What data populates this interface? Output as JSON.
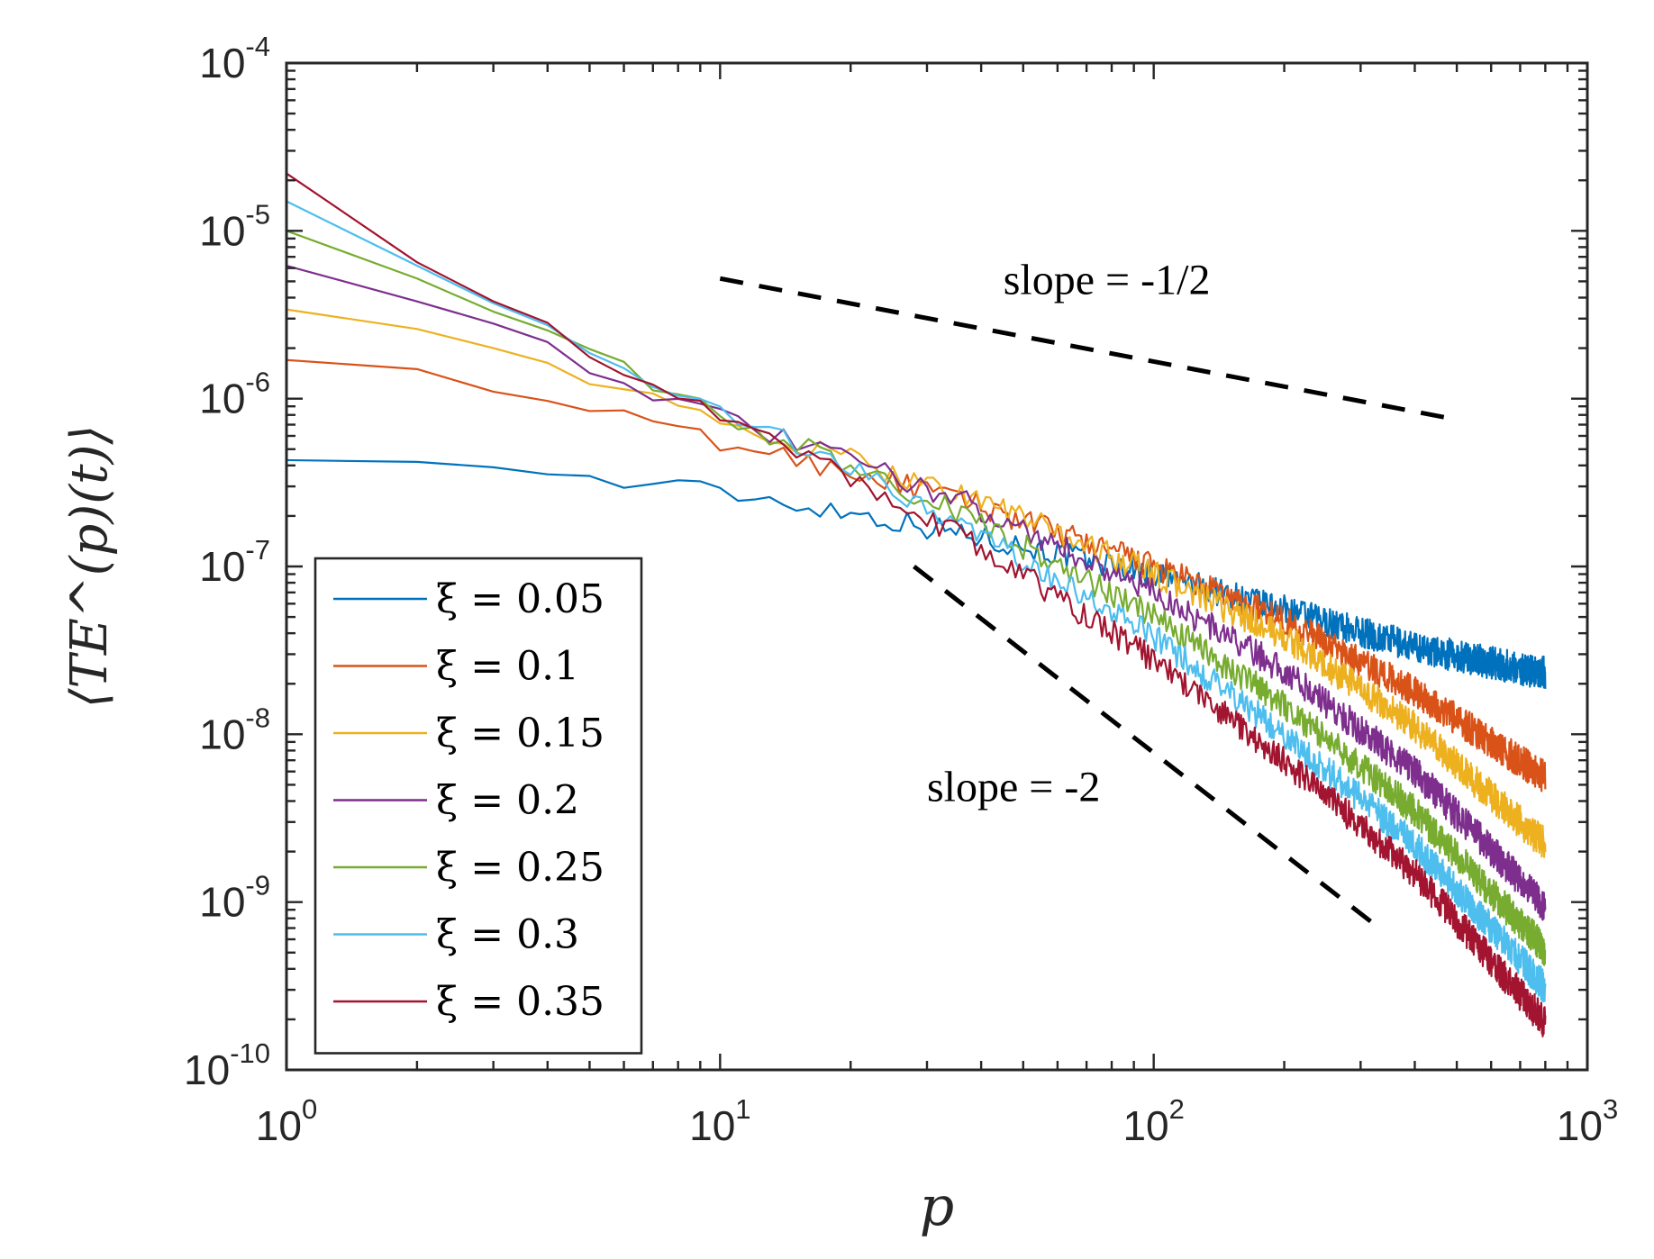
{
  "chart_data": {
    "type": "line",
    "scale": {
      "x": "log",
      "y": "log"
    },
    "xlim": [
      1,
      1000
    ],
    "ylim": [
      1e-10,
      0.0001
    ],
    "xlabel": "p",
    "ylabel": "⟨TE^(p)(t)⟩",
    "x_ticks": [
      {
        "base": "10",
        "exp": "0",
        "value": 1
      },
      {
        "base": "10",
        "exp": "1",
        "value": 10
      },
      {
        "base": "10",
        "exp": "2",
        "value": 100
      },
      {
        "base": "10",
        "exp": "3",
        "value": 1000
      }
    ],
    "y_ticks": [
      {
        "base": "10",
        "exp": "-10",
        "value": 1e-10
      },
      {
        "base": "10",
        "exp": "-9",
        "value": 1e-09
      },
      {
        "base": "10",
        "exp": "-8",
        "value": 1e-08
      },
      {
        "base": "10",
        "exp": "-7",
        "value": 1e-07
      },
      {
        "base": "10",
        "exp": "-6",
        "value": 1e-06
      },
      {
        "base": "10",
        "exp": "-5",
        "value": 1e-05
      },
      {
        "base": "10",
        "exp": "-4",
        "value": 0.0001
      }
    ],
    "legend_position": "bottom-left",
    "p_max": 800,
    "series": [
      {
        "name": "ξ = 0.05",
        "color": "#0072BD",
        "points": [
          [
            1,
            4.3e-07
          ],
          [
            2,
            4.2e-07
          ],
          [
            3,
            3.9e-07
          ],
          [
            5,
            3.3e-07
          ],
          [
            10,
            2.8e-07
          ],
          [
            20,
            2.1e-07
          ],
          [
            40,
            1.5e-07
          ],
          [
            100,
            9e-08
          ],
          [
            200,
            5.5e-08
          ],
          [
            400,
            3.3e-08
          ],
          [
            800,
            2.3e-08
          ]
        ]
      },
      {
        "name": "ξ = 0.1",
        "color": "#D95319",
        "points": [
          [
            1,
            1.7e-06
          ],
          [
            2,
            1.5e-06
          ],
          [
            3,
            1.1e-06
          ],
          [
            5,
            8.5e-07
          ],
          [
            10,
            5.5e-07
          ],
          [
            20,
            3.7e-07
          ],
          [
            40,
            2.3e-07
          ],
          [
            100,
            1e-07
          ],
          [
            200,
            4.8e-08
          ],
          [
            400,
            1.8e-08
          ],
          [
            800,
            5.5e-09
          ]
        ]
      },
      {
        "name": "ξ = 0.15",
        "color": "#EDB120",
        "points": [
          [
            1,
            3.4e-06
          ],
          [
            2,
            2.6e-06
          ],
          [
            3,
            2e-06
          ],
          [
            5,
            1.3e-06
          ],
          [
            10,
            7e-07
          ],
          [
            20,
            4.3e-07
          ],
          [
            40,
            2.5e-07
          ],
          [
            100,
            9e-08
          ],
          [
            200,
            3.8e-08
          ],
          [
            400,
            1.1e-08
          ],
          [
            800,
            2.2e-09
          ]
        ]
      },
      {
        "name": "ξ = 0.2",
        "color": "#7E2F8E",
        "points": [
          [
            1,
            6.2e-06
          ],
          [
            2,
            3.8e-06
          ],
          [
            3,
            2.8e-06
          ],
          [
            5,
            1.6e-06
          ],
          [
            10,
            7.5e-07
          ],
          [
            20,
            4.3e-07
          ],
          [
            40,
            2.2e-07
          ],
          [
            100,
            7e-08
          ],
          [
            200,
            2.4e-08
          ],
          [
            400,
            6e-09
          ],
          [
            800,
            9.5e-10
          ]
        ]
      },
      {
        "name": "ξ = 0.25",
        "color": "#77AC30",
        "points": [
          [
            1,
            1e-05
          ],
          [
            2,
            5.2e-06
          ],
          [
            3,
            3.3e-06
          ],
          [
            5,
            1.8e-06
          ],
          [
            10,
            8e-07
          ],
          [
            20,
            4e-07
          ],
          [
            40,
            1.8e-07
          ],
          [
            100,
            5e-08
          ],
          [
            200,
            1.5e-08
          ],
          [
            400,
            3.5e-09
          ],
          [
            800,
            5.2e-10
          ]
        ]
      },
      {
        "name": "ξ = 0.3",
        "color": "#4DBEEE",
        "points": [
          [
            1,
            1.5e-05
          ],
          [
            2,
            6.2e-06
          ],
          [
            3,
            3.7e-06
          ],
          [
            5,
            1.8e-06
          ],
          [
            10,
            8e-07
          ],
          [
            20,
            3.8e-07
          ],
          [
            40,
            1.5e-07
          ],
          [
            100,
            3.8e-08
          ],
          [
            200,
            1e-08
          ],
          [
            400,
            2.2e-09
          ],
          [
            800,
            3.1e-10
          ]
        ]
      },
      {
        "name": "ξ = 0.35",
        "color": "#A2142F",
        "points": [
          [
            1,
            2.2e-05
          ],
          [
            2,
            6.5e-06
          ],
          [
            3,
            3.8e-06
          ],
          [
            5,
            1.8e-06
          ],
          [
            10,
            7.8e-07
          ],
          [
            20,
            3.5e-07
          ],
          [
            40,
            1.3e-07
          ],
          [
            100,
            2.8e-08
          ],
          [
            200,
            7e-09
          ],
          [
            400,
            1.5e-09
          ],
          [
            800,
            1.9e-10
          ]
        ]
      }
    ],
    "reference_lines": [
      {
        "label": "slope = -1/2",
        "slope": -0.5,
        "from": [
          10,
          5.2e-06
        ],
        "to": [
          500,
          7.5e-07
        ],
        "label_at": [
          45,
          4.2e-06
        ]
      },
      {
        "label": "slope = -2",
        "slope": -2,
        "from": [
          28,
          1e-07
        ],
        "to": [
          320,
          7.5e-10
        ],
        "label_at": [
          30,
          4e-09
        ]
      }
    ]
  }
}
